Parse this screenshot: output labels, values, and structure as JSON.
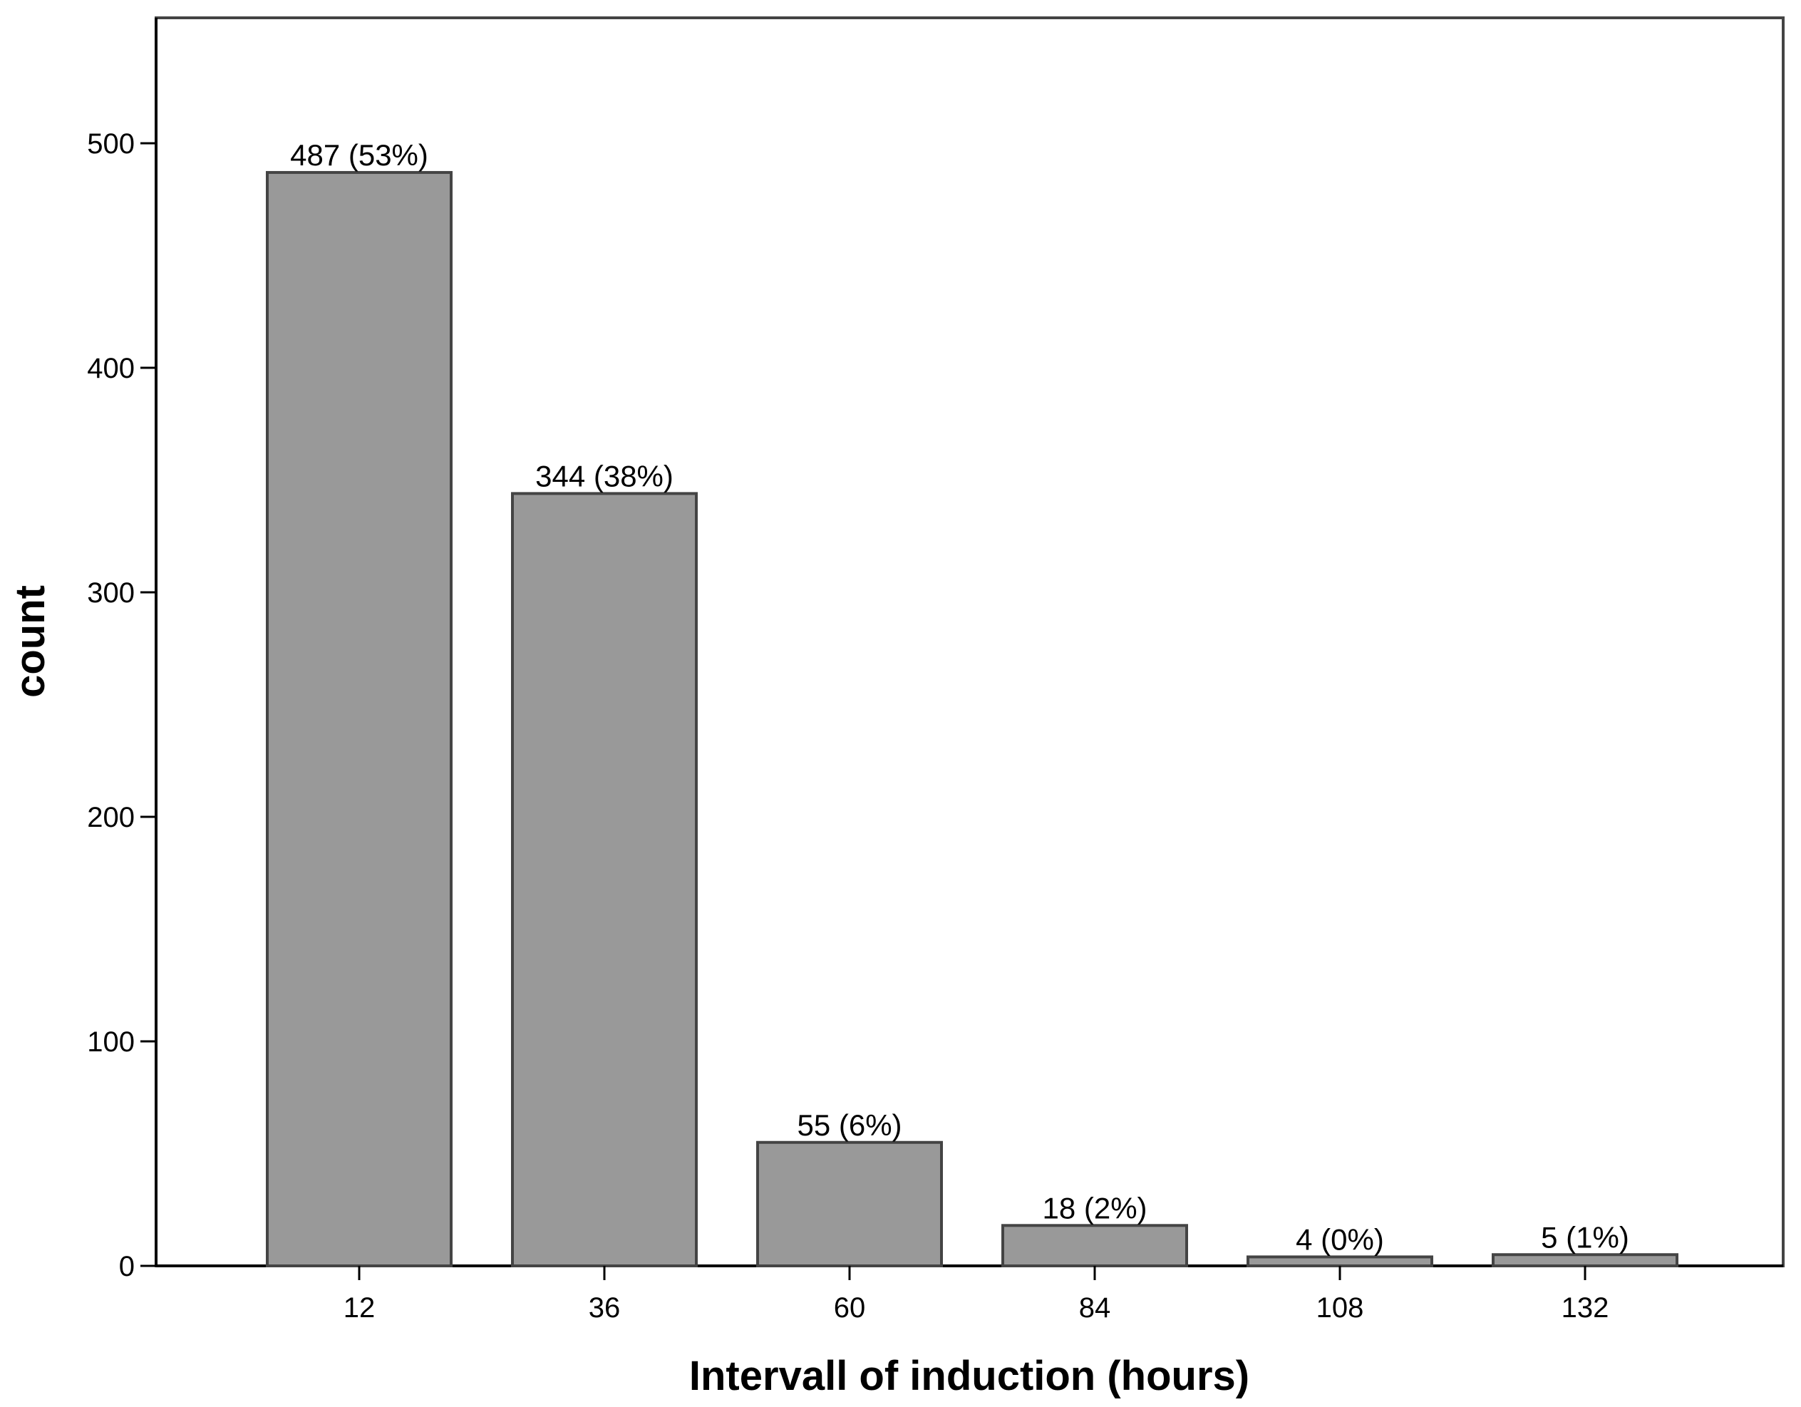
{
  "chart_data": {
    "type": "bar",
    "title": "",
    "xlabel": "Intervall of induction (hours)",
    "ylabel": "count",
    "categories": [
      "12",
      "36",
      "60",
      "84",
      "108",
      "132"
    ],
    "values": [
      487,
      344,
      55,
      18,
      4,
      5
    ],
    "data_labels": [
      "487 (53%)",
      "344 (38%)",
      "55 (6%)",
      "18 (2%)",
      "4 (0%)",
      "5 (1%)"
    ],
    "yticks": [
      "0",
      "100",
      "200",
      "300",
      "400",
      "500"
    ],
    "ytick_values": [
      0,
      100,
      200,
      300,
      400,
      500
    ],
    "ylim": [
      0,
      556
    ],
    "grid": false,
    "legend": "none",
    "colors": {
      "bar_fill": "#999999",
      "bar_stroke": "#444444",
      "axis": "#000000",
      "frame": "#444444"
    }
  }
}
